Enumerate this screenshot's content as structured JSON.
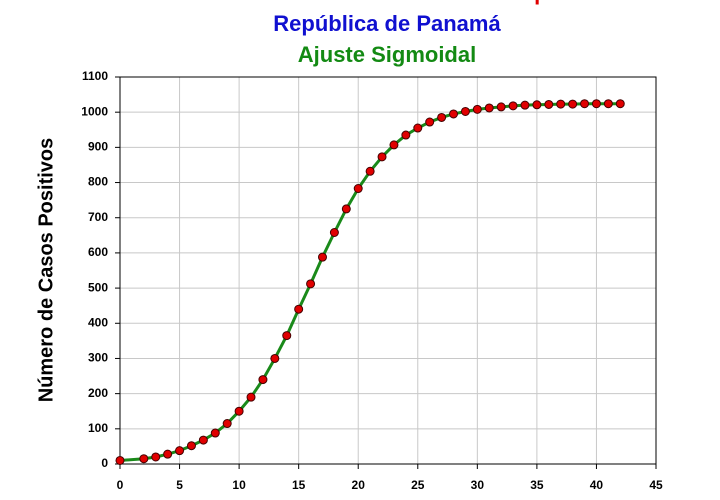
{
  "chart_data": {
    "type": "line",
    "title_lines": [
      {
        "text": "Casos de Coronavirus vs Tiempo",
        "color": "#e00000"
      },
      {
        "text": "República de Panamá",
        "color": "#1010d0"
      },
      {
        "text": "Ajuste Sigmoidal",
        "color": "#138a13"
      }
    ],
    "y_label": "Número de Casos Positivos",
    "x": [
      0,
      2,
      3,
      4,
      5,
      6,
      7,
      8,
      9,
      10,
      11,
      12,
      13,
      14,
      15,
      16,
      17,
      18,
      19,
      20,
      21,
      22,
      23,
      24,
      25,
      26,
      27,
      28,
      29,
      30,
      31,
      32,
      33,
      34,
      35,
      36,
      37,
      38,
      39,
      40,
      41,
      42
    ],
    "values": [
      10,
      15,
      20,
      28,
      38,
      52,
      68,
      88,
      115,
      150,
      190,
      240,
      300,
      365,
      440,
      512,
      588,
      658,
      725,
      783,
      832,
      873,
      907,
      935,
      955,
      972,
      985,
      995,
      1002,
      1008,
      1012,
      1015,
      1018,
      1020,
      1021,
      1022,
      1023,
      1023,
      1024,
      1024,
      1024,
      1024
    ],
    "color": "#1a8a1a",
    "marker_color": "#e00000",
    "xlim": [
      0,
      45
    ],
    "xticks": [
      0,
      5,
      10,
      15,
      20,
      25,
      30,
      35,
      40,
      45
    ],
    "ylim": [
      0,
      1100
    ],
    "yticks": [
      0,
      100,
      200,
      300,
      400,
      500,
      600,
      700,
      800,
      900,
      1000,
      1100
    ],
    "grid": true
  }
}
